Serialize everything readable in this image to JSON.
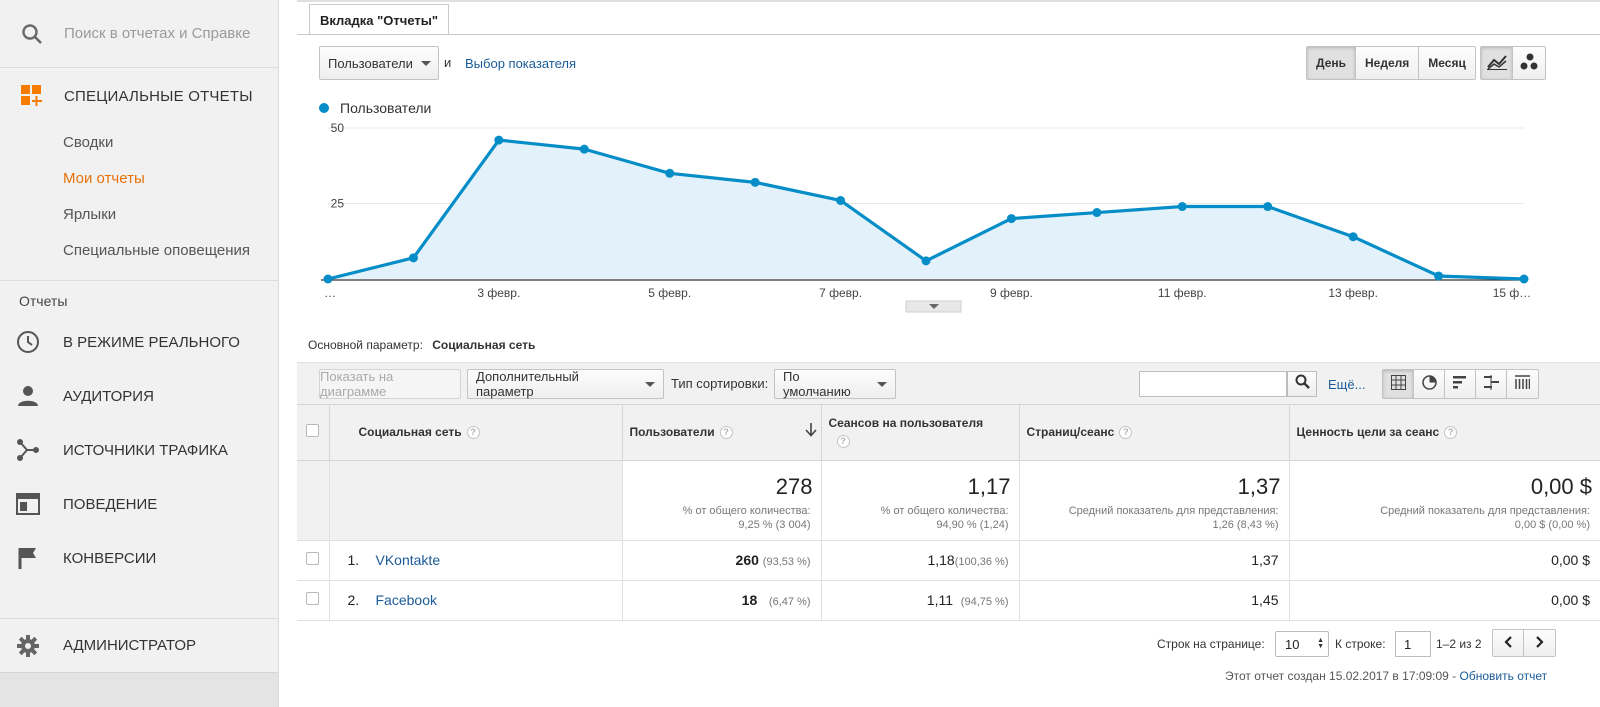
{
  "sidebar": {
    "search_placeholder": "Поиск в отчетах и Справке",
    "custom_reports": {
      "label": "СПЕЦИАЛЬНЫЕ ОТЧЕТЫ",
      "items": [
        "Сводки",
        "Мои отчеты",
        "Ярлыки",
        "Специальные оповещения"
      ],
      "active_index": 1
    },
    "reports_title": "Отчеты",
    "nav": [
      {
        "label": "В РЕЖИМЕ РЕАЛЬНОГО",
        "icon": "clock-icon"
      },
      {
        "label": "АУДИТОРИЯ",
        "icon": "person-icon"
      },
      {
        "label": "ИСТОЧНИКИ ТРАФИКА",
        "icon": "acquisition-icon"
      },
      {
        "label": "ПОВЕДЕНИЕ",
        "icon": "behavior-icon"
      },
      {
        "label": "КОНВЕРСИИ",
        "icon": "flag-icon"
      }
    ],
    "admin_label": "АДМИНИСТРАТОР"
  },
  "tab": {
    "label": "Вкладка \"Отчеты\""
  },
  "controls": {
    "metric": "Пользователи",
    "and": "и",
    "metric_link": "Выбор показателя",
    "periods": [
      "День",
      "Неделя",
      "Месяц"
    ],
    "active_period": "День"
  },
  "chart_data": {
    "type": "area",
    "legend": [
      "Пользователи"
    ],
    "series": [
      {
        "name": "Пользователи",
        "values": [
          0,
          7,
          46,
          43,
          35,
          32,
          26,
          6,
          20,
          22,
          24,
          24,
          14,
          1,
          0
        ]
      }
    ],
    "x_tick_labels": [
      "…",
      "3 февр.",
      "5 февр.",
      "7 февр.",
      "9 февр.",
      "11 февр.",
      "13 февр.",
      "15 ф…"
    ],
    "y_tick_labels": [
      "50",
      "25"
    ],
    "ylim": [
      0,
      50
    ],
    "color": "#058dc7",
    "fill": "#e3f1fa"
  },
  "primary_dimension": {
    "label": "Основной параметр:",
    "value": "Социальная сеть"
  },
  "toolbar": {
    "plot_button": "Показать на диаграмме",
    "secondary_dimension": "Дополнительный параметр",
    "sort_label": "Тип сортировки:",
    "sort_value": "По умолчанию",
    "more_link": "Ещё..."
  },
  "table": {
    "headers": {
      "dimension": "Социальная сеть",
      "users": "Пользователи",
      "sessions_per_user": "Сеансов на пользователя",
      "pages_per_session": "Страниц/сеанс",
      "goal_value": "Ценность цели за сеанс"
    },
    "totals": {
      "users": "278",
      "users_sub1": "% от общего количества:",
      "users_sub2": "9,25 % (3 004)",
      "sessions": "1,17",
      "sessions_sub1": "% от общего количества:",
      "sessions_sub2": "94,90 % (1,24)",
      "pages": "1,37",
      "pages_sub1": "Средний показатель для представления:",
      "pages_sub2": "1,26 (8,43 %)",
      "goal": "0,00 $",
      "goal_sub1": "Средний показатель для представления:",
      "goal_sub2": "0,00 $ (0,00 %)"
    },
    "rows": [
      {
        "num": "1.",
        "name": "VKontakte",
        "users": "260",
        "users_pct": "(93,53 %)",
        "spu": "1,18",
        "spu_pct": "(100,36 %)",
        "pages": "1,37",
        "goal": "0,00 $"
      },
      {
        "num": "2.",
        "name": "Facebook",
        "users": "18",
        "users_pct": "(6,47 %)",
        "spu": "1,11",
        "spu_pct": "(94,75 %)",
        "pages": "1,45",
        "goal": "0,00 $"
      }
    ]
  },
  "pagination": {
    "rows_label": "Строк на странице:",
    "rows_value": "10",
    "goto_label": "К строке:",
    "goto_value": "1",
    "range": "1–2 из 2"
  },
  "footer": {
    "created": "Этот отчет создан 15.02.2017 в 17:09:09 -",
    "refresh": "Обновить отчет"
  }
}
